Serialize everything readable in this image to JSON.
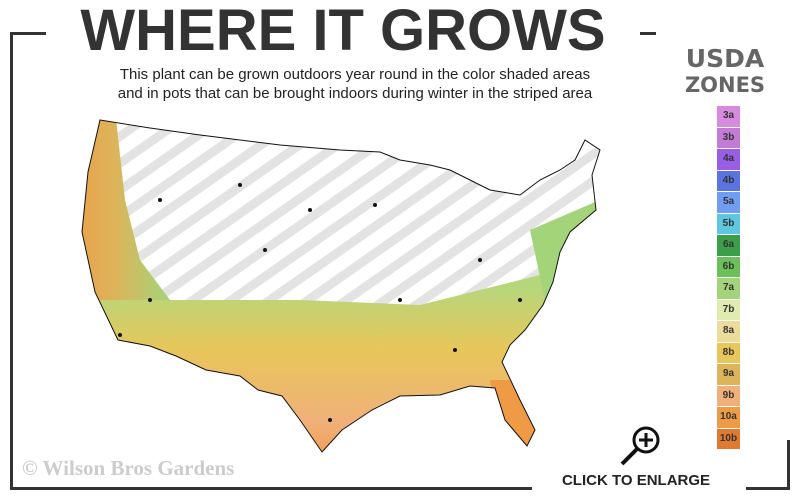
{
  "title": "WHERE IT GROWS",
  "subtitle_lines": [
    "This plant can be grown outdoors year round in the color shaded areas",
    "and in pots that can be brought indoors during winter in the striped area"
  ],
  "legend": {
    "title_line1": "USDA",
    "title_line2": "ZONES",
    "zones": [
      {
        "label": "3a",
        "color": "#d88ae0"
      },
      {
        "label": "3b",
        "color": "#c47bd6"
      },
      {
        "label": "4a",
        "color": "#9a5ee6"
      },
      {
        "label": "4b",
        "color": "#5b73e0"
      },
      {
        "label": "5a",
        "color": "#6f9df2"
      },
      {
        "label": "5b",
        "color": "#5fc6e0"
      },
      {
        "label": "6a",
        "color": "#3a9e4a"
      },
      {
        "label": "6b",
        "color": "#6cc05a"
      },
      {
        "label": "7a",
        "color": "#a3d47a"
      },
      {
        "label": "7b",
        "color": "#dfebb0"
      },
      {
        "label": "8a",
        "color": "#ecdc9a"
      },
      {
        "label": "8b",
        "color": "#e8c65a"
      },
      {
        "label": "9a",
        "color": "#ddb45a"
      },
      {
        "label": "9b",
        "color": "#f0b07a"
      },
      {
        "label": "10a",
        "color": "#ef9a45"
      },
      {
        "label": "10b",
        "color": "#e07a30"
      }
    ]
  },
  "copyright": "© Wilson Bros Gardens",
  "enlarge_label": "CLICK TO ENLARGE",
  "icons": {
    "enlarge": "magnifier-plus-icon"
  }
}
